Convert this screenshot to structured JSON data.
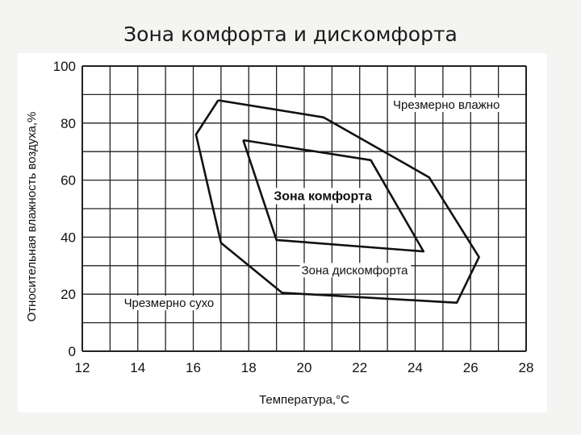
{
  "slide": {
    "title": "Зона комфорта и дискомфорта"
  },
  "chart_data": {
    "type": "line",
    "title": "",
    "xlabel": "Температура,°C",
    "ylabel": "Относительная влажность воздуха,%",
    "xlim": [
      12,
      28
    ],
    "ylim": [
      0,
      100
    ],
    "x_ticks": [
      12,
      14,
      16,
      18,
      20,
      22,
      24,
      26,
      28
    ],
    "y_ticks": [
      0,
      20,
      40,
      60,
      80,
      100
    ],
    "grid": true,
    "series": [
      {
        "name": "Зона комфорта",
        "points": [
          [
            17.8,
            74
          ],
          [
            22.4,
            67
          ],
          [
            24.3,
            35
          ],
          [
            19.0,
            39
          ],
          [
            17.8,
            74
          ]
        ]
      },
      {
        "name": "Зона дискомфорта",
        "points": [
          [
            16.9,
            88
          ],
          [
            20.7,
            82
          ],
          [
            24.5,
            61
          ],
          [
            26.3,
            33
          ],
          [
            25.5,
            17
          ],
          [
            19.2,
            20.5
          ],
          [
            17.0,
            38
          ],
          [
            16.1,
            76
          ],
          [
            16.9,
            88
          ]
        ]
      }
    ],
    "annotations": [
      {
        "text": "Чрезмерно влажно",
        "x": 23.2,
        "y": 85
      },
      {
        "text": "Зона комфорта",
        "x": 18.9,
        "y": 53
      },
      {
        "text": "Зона дискомфорта",
        "x": 19.9,
        "y": 27
      },
      {
        "text": "Чрезмерно сухо",
        "x": 13.5,
        "y": 15.5
      }
    ]
  }
}
